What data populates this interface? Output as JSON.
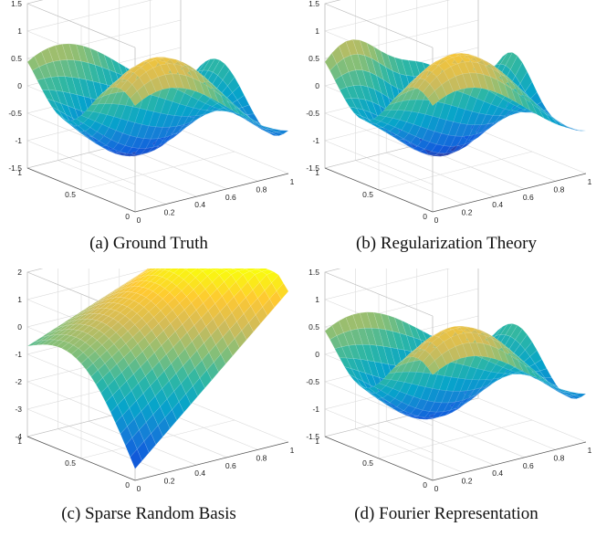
{
  "panels": [
    {
      "caption": "(a) Ground Truth"
    },
    {
      "caption": "(b) Regularization Theory"
    },
    {
      "caption": "(c) Sparse Random Basis"
    },
    {
      "caption": "(d) Fourier Representation"
    }
  ],
  "chart_data": [
    {
      "type": "surface",
      "caption": "(a) Ground Truth",
      "x_ticks": [
        "0",
        "0.2",
        "0.4",
        "0.6",
        "0.8",
        "1"
      ],
      "y_ticks": [
        "0",
        "0.5",
        "1"
      ],
      "z_ticks": [
        "-1.5",
        "-1",
        "-0.5",
        "0",
        "0.5",
        "1",
        "1.5"
      ],
      "xlim": [
        0,
        1
      ],
      "ylim": [
        0,
        1
      ],
      "zlim": [
        -1.5,
        1.5
      ],
      "grid": true,
      "colormap": "parula",
      "colormap_colors": [
        "#352a87",
        "#0f5cdd",
        "#1481d6",
        "#06a4ca",
        "#2eb7a4",
        "#87bf77",
        "#d1bb59",
        "#fec832",
        "#f9fb0e"
      ]
    },
    {
      "type": "surface",
      "caption": "(b) Regularization Theory",
      "x_ticks": [
        "0",
        "0.2",
        "0.4",
        "0.6",
        "0.8",
        "1"
      ],
      "y_ticks": [
        "0",
        "0.5",
        "1"
      ],
      "z_ticks": [
        "-1.5",
        "-1",
        "-0.5",
        "0",
        "0.5",
        "1",
        "1.5"
      ],
      "xlim": [
        0,
        1
      ],
      "ylim": [
        0,
        1
      ],
      "zlim": [
        -1.5,
        1.5
      ],
      "grid": true,
      "colormap": "parula"
    },
    {
      "type": "surface",
      "caption": "(c) Sparse Random Basis",
      "x_ticks": [
        "0",
        "0.2",
        "0.4",
        "0.6",
        "0.8",
        "1"
      ],
      "y_ticks": [
        "0",
        "0.5",
        "1"
      ],
      "z_ticks": [
        "-4",
        "-3",
        "-2",
        "-1",
        "0",
        "1",
        "2"
      ],
      "xlim": [
        0,
        1
      ],
      "ylim": [
        0,
        1
      ],
      "zlim": [
        -4,
        2
      ],
      "grid": true,
      "colormap": "parula"
    },
    {
      "type": "surface",
      "caption": "(d) Fourier Representation",
      "x_ticks": [
        "0",
        "0.2",
        "0.4",
        "0.6",
        "0.8",
        "1"
      ],
      "y_ticks": [
        "0",
        "0.5",
        "1"
      ],
      "z_ticks": [
        "-1.5",
        "-1",
        "-0.5",
        "0",
        "0.5",
        "1",
        "1.5"
      ],
      "xlim": [
        0,
        1
      ],
      "ylim": [
        0,
        1
      ],
      "zlim": [
        -1.5,
        1.5
      ],
      "grid": true,
      "colormap": "parula"
    }
  ]
}
